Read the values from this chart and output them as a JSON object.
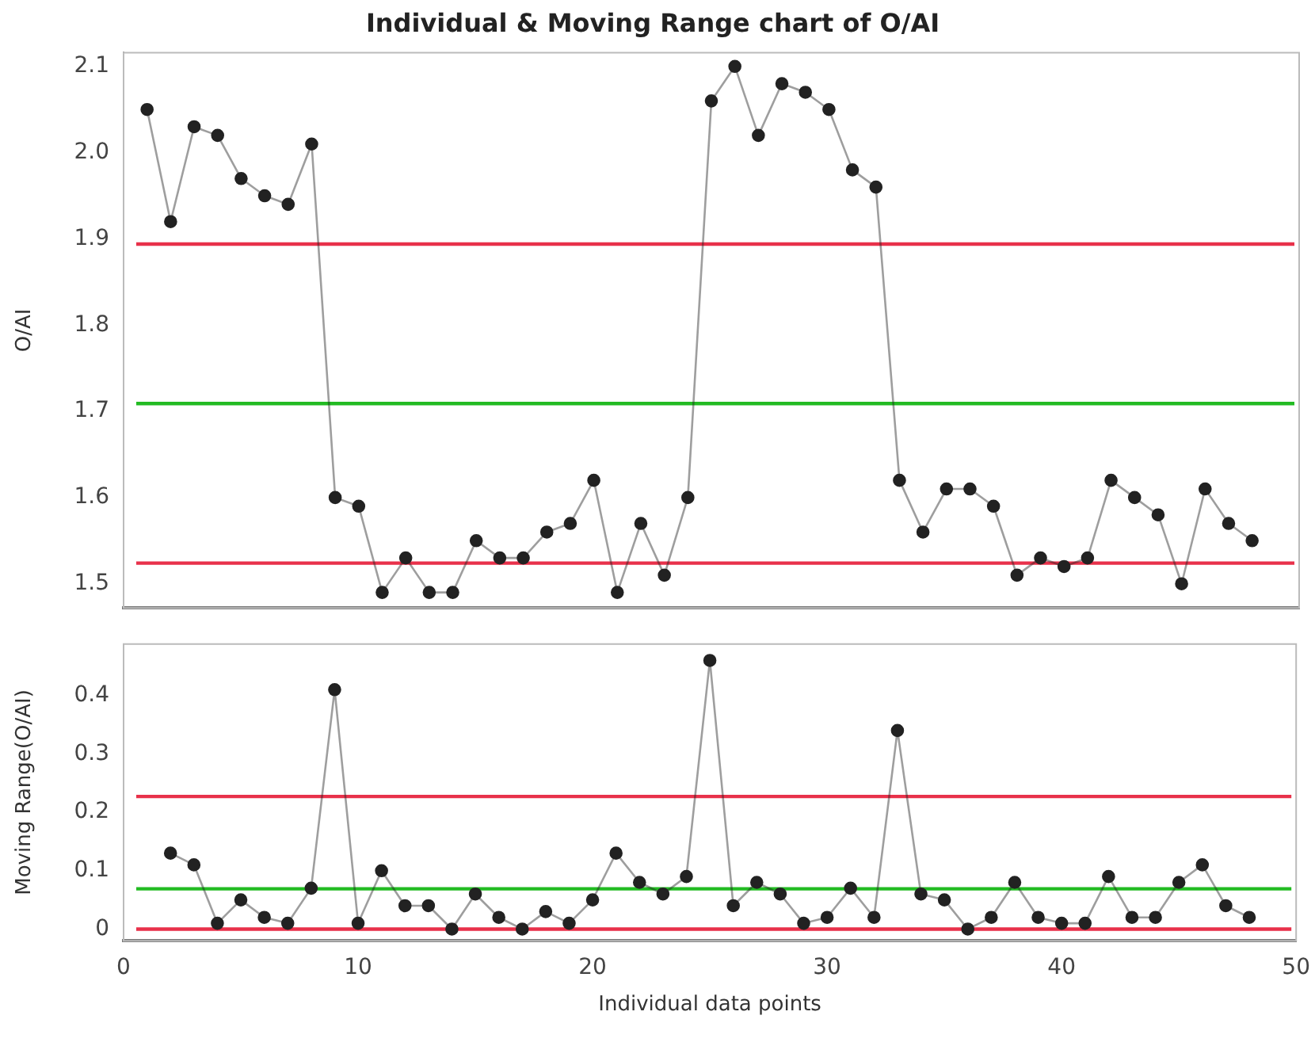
{
  "chart_data": [
    {
      "type": "line",
      "title": "Individual & Moving Range chart of O/AI",
      "ylabel": "O/AI",
      "x": [
        1,
        2,
        3,
        4,
        5,
        6,
        7,
        8,
        9,
        10,
        11,
        12,
        13,
        14,
        15,
        16,
        17,
        18,
        19,
        20,
        21,
        22,
        23,
        24,
        25,
        26,
        27,
        28,
        29,
        30,
        31,
        32,
        33,
        34,
        35,
        36,
        37,
        38,
        39,
        40,
        41,
        42,
        43,
        44,
        45,
        46,
        47,
        48
      ],
      "series": [
        {
          "color": "#222222",
          "values": [
            2.05,
            1.92,
            2.03,
            2.02,
            1.97,
            1.95,
            1.94,
            2.01,
            1.6,
            1.59,
            1.49,
            1.53,
            1.49,
            1.49,
            1.55,
            1.53,
            1.53,
            1.56,
            1.57,
            1.62,
            1.49,
            1.57,
            1.51,
            1.6,
            2.06,
            2.1,
            2.02,
            2.08,
            2.07,
            2.05,
            1.98,
            1.96,
            1.62,
            1.56,
            1.61,
            1.61,
            1.59,
            1.51,
            1.53,
            1.52,
            1.53,
            1.62,
            1.6,
            1.58,
            1.5,
            1.61,
            1.57,
            1.55
          ]
        }
      ],
      "xlim": [
        0,
        50
      ],
      "ylim": [
        1.472,
        2.116
      ],
      "yticks": [
        1.5,
        1.6,
        1.7,
        1.8,
        1.9,
        {
          "value": 2.0,
          "label": "2.0"
        },
        2.1
      ],
      "ref_lines": [
        {
          "axis": "y",
          "value": 1.894,
          "color": "#e8314a"
        },
        {
          "axis": "y",
          "value": 1.709,
          "color": "#22bb22"
        },
        {
          "axis": "y",
          "value": 1.524,
          "color": "#e8314a"
        }
      ],
      "marker": "circle",
      "grid": false,
      "legend": false,
      "tick_labels": "y"
    },
    {
      "type": "line",
      "xlabel": "Individual data points",
      "ylabel": "Moving Range(O/AI)",
      "x": [
        2,
        3,
        4,
        5,
        6,
        7,
        8,
        9,
        10,
        11,
        12,
        13,
        14,
        15,
        16,
        17,
        18,
        19,
        20,
        21,
        22,
        23,
        24,
        25,
        26,
        27,
        28,
        29,
        30,
        31,
        32,
        33,
        34,
        35,
        36,
        37,
        38,
        39,
        40,
        41,
        42,
        43,
        44,
        45,
        46,
        47,
        48
      ],
      "series": [
        {
          "color": "#222222",
          "values": [
            0.13,
            0.11,
            0.01,
            0.05,
            0.02,
            0.01,
            0.07,
            0.41,
            0.01,
            0.1,
            0.04,
            0.04,
            0,
            0.06,
            0.02,
            0,
            0.03,
            0.01,
            0.05,
            0.13,
            0.08,
            0.06,
            0.09,
            0.46,
            0.04,
            0.08,
            0.06,
            0.01,
            0.02,
            0.07,
            0.02,
            0.34,
            0.06,
            0.05,
            0,
            0.02,
            0.08,
            0.02,
            0.01,
            0.01,
            0.09,
            0.02,
            0.02,
            0.08,
            0.11,
            0.04,
            0.02
          ]
        }
      ],
      "xlim": [
        0,
        50
      ],
      "xticks": [
        0,
        10,
        20,
        30,
        40,
        50
      ],
      "ylim": [
        -0.02,
        0.488
      ],
      "yticks": [
        0,
        0.1,
        0.2,
        0.3,
        0.4
      ],
      "ref_lines": [
        {
          "axis": "y",
          "value": 0.227,
          "color": "#e8314a"
        },
        {
          "axis": "y",
          "value": 0.069,
          "color": "#22bb22"
        },
        {
          "axis": "y",
          "value": 0,
          "color": "#e8314a"
        }
      ],
      "marker": "circle",
      "grid": false,
      "legend": false
    }
  ]
}
